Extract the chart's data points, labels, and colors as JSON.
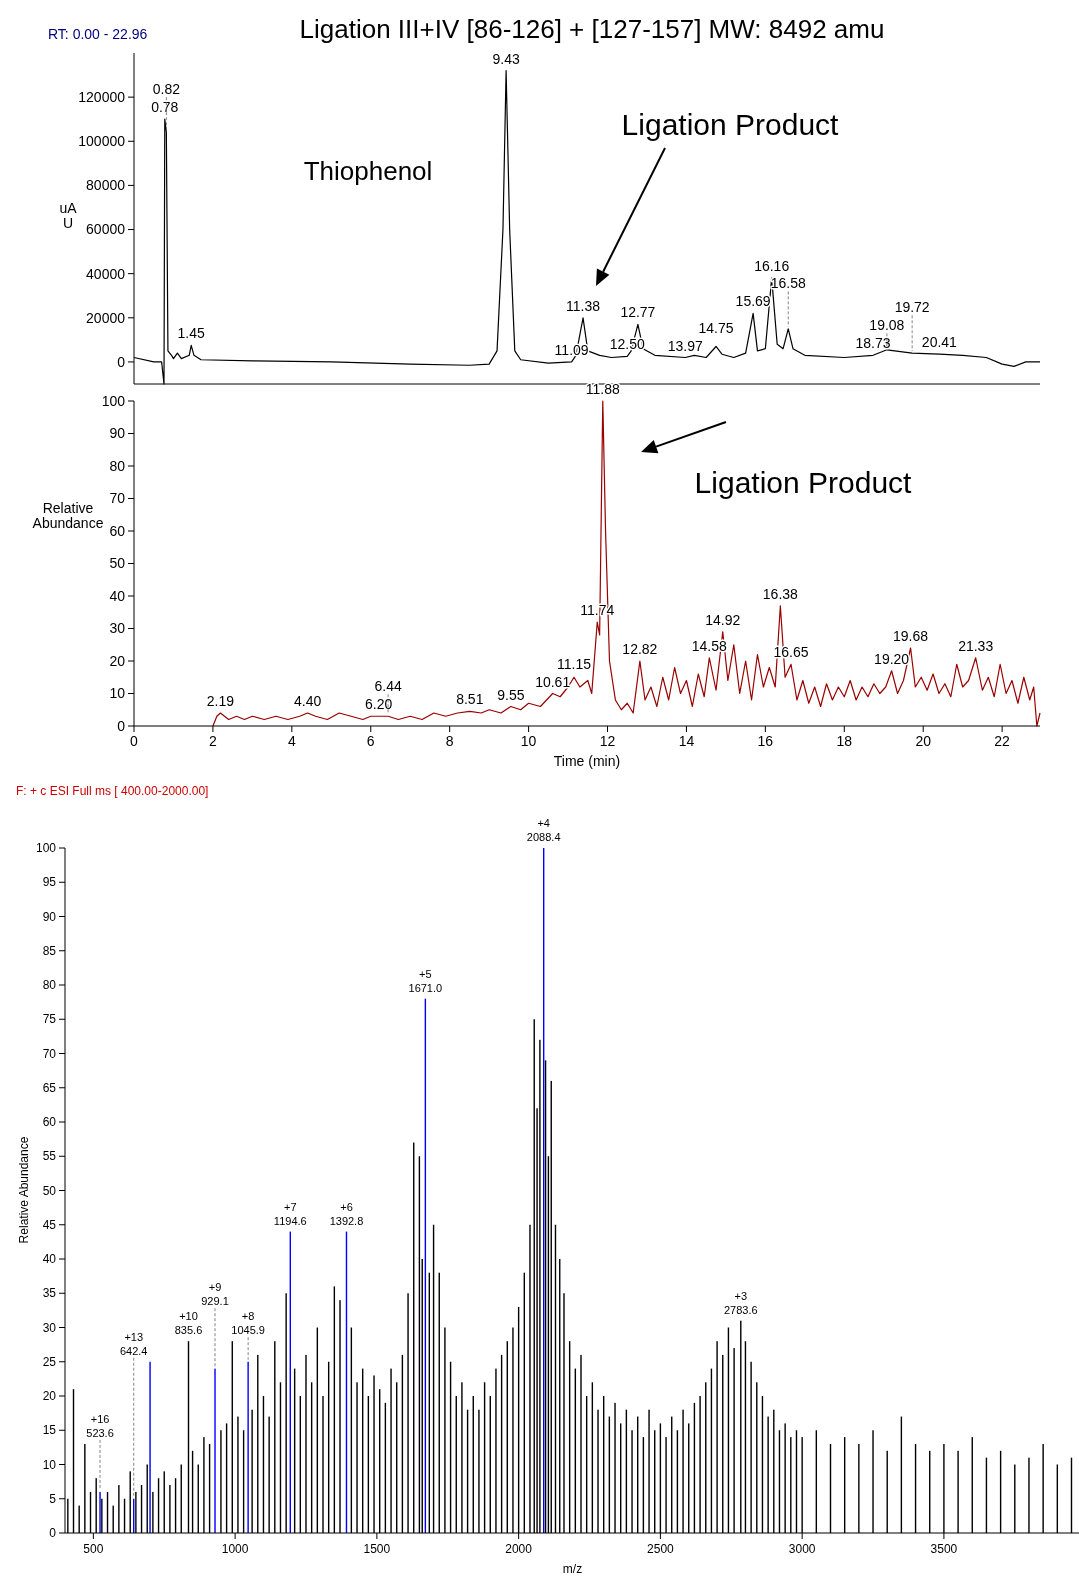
{
  "chart_data": [
    {
      "type": "line",
      "title": "Ligation III+IV [86-126] + [127-157] MW: 8492 amu",
      "ylabel": "uA U",
      "xlim": [
        0,
        22.96
      ],
      "ylim": [
        -10000,
        140000
      ],
      "yticks": [
        0,
        20000,
        40000,
        60000,
        80000,
        100000,
        120000
      ],
      "tick_labels": "y",
      "x": [
        0,
        0.5,
        0.7,
        0.76,
        0.78,
        0.82,
        0.86,
        0.95,
        1.0,
        1.1,
        1.2,
        1.4,
        1.45,
        1.52,
        1.7,
        3,
        5,
        7,
        8.5,
        9.0,
        9.2,
        9.35,
        9.43,
        9.52,
        9.65,
        9.8,
        10.5,
        11.09,
        11.2,
        11.38,
        11.5,
        11.8,
        12.1,
        12.5,
        12.6,
        12.77,
        12.9,
        13.2,
        13.97,
        14.2,
        14.5,
        14.75,
        14.9,
        15.2,
        15.5,
        15.69,
        15.8,
        16.0,
        16.16,
        16.3,
        16.45,
        16.58,
        16.7,
        17,
        18,
        18.73,
        19.08,
        19.72,
        20.41,
        21,
        21.6,
        22.0,
        22.3,
        22.6,
        22.96
      ],
      "series": [
        {
          "color": "#000000",
          "values": [
            2000,
            0,
            0,
            -10000,
            110000,
            104000,
            5000,
            3000,
            1500,
            4000,
            1500,
            3000,
            7500,
            3000,
            1000,
            500,
            0,
            -1000,
            -1500,
            -1000,
            5000,
            60000,
            132000,
            60000,
            5000,
            1000,
            -500,
            0,
            3000,
            20000,
            5000,
            3000,
            2000,
            2500,
            5000,
            17000,
            6000,
            3000,
            2000,
            3000,
            2000,
            7000,
            3500,
            2000,
            4000,
            22000,
            5000,
            6000,
            38000,
            8000,
            6000,
            15000,
            6000,
            3000,
            2000,
            3000,
            5500,
            4000,
            3500,
            3000,
            2000,
            -1000,
            -2000,
            0,
            0
          ]
        }
      ],
      "annotations": [
        "RT: 0.00 - 22.96",
        "Thiophenol",
        "Ligation Product",
        {
          "text": "0.78",
          "x": 0.78,
          "y": 110000
        },
        {
          "text": "0.82",
          "x": 0.82,
          "y": 104000
        },
        {
          "text": "1.45",
          "x": 1.45,
          "y": 7500
        },
        {
          "text": "9.43",
          "x": 9.43,
          "y": 132000
        },
        {
          "text": "11.09",
          "x": 11.09,
          "y": 0
        },
        {
          "text": "11.38",
          "x": 11.38,
          "y": 20000
        },
        {
          "text": "12.50",
          "x": 12.5,
          "y": 2500
        },
        {
          "text": "12.77",
          "x": 12.77,
          "y": 17000
        },
        {
          "text": "13.97",
          "x": 13.97,
          "y": 2000
        },
        {
          "text": "14.75",
          "x": 14.75,
          "y": 7000
        },
        {
          "text": "15.69",
          "x": 15.69,
          "y": 22000
        },
        {
          "text": "16.16",
          "x": 16.16,
          "y": 38000
        },
        {
          "text": "16.58",
          "x": 16.58,
          "y": 15000
        },
        {
          "text": "18.73",
          "x": 18.73,
          "y": 3000
        },
        {
          "text": "19.08",
          "x": 19.08,
          "y": 5500
        },
        {
          "text": "19.72",
          "x": 19.72,
          "y": 4000
        },
        {
          "text": "20.41",
          "x": 20.41,
          "y": 3500
        }
      ]
    },
    {
      "type": "line",
      "xlabel": "Time (min)",
      "ylabel": "Relative Abundance",
      "xlim": [
        0,
        22.96
      ],
      "ylim": [
        0,
        100
      ],
      "xticks": [
        0,
        2,
        4,
        6,
        8,
        10,
        12,
        14,
        16,
        18,
        20,
        22
      ],
      "yticks": [
        0,
        10,
        20,
        30,
        40,
        50,
        60,
        70,
        80,
        90,
        100
      ],
      "x": [
        2.0,
        2.1,
        2.19,
        2.4,
        2.6,
        2.8,
        3.0,
        3.3,
        3.6,
        3.9,
        4.2,
        4.4,
        4.6,
        4.9,
        5.2,
        5.5,
        5.8,
        6.0,
        6.2,
        6.44,
        6.7,
        7.0,
        7.3,
        7.6,
        7.9,
        8.2,
        8.51,
        8.8,
        9.0,
        9.3,
        9.55,
        9.8,
        10.0,
        10.3,
        10.61,
        10.8,
        11.0,
        11.15,
        11.3,
        11.5,
        11.6,
        11.74,
        11.8,
        11.88,
        11.95,
        12.05,
        12.2,
        12.35,
        12.5,
        12.65,
        12.82,
        12.95,
        13.1,
        13.25,
        13.4,
        13.55,
        13.7,
        13.85,
        14.0,
        14.15,
        14.3,
        14.45,
        14.58,
        14.75,
        14.92,
        15.05,
        15.2,
        15.35,
        15.5,
        15.65,
        15.8,
        15.95,
        16.1,
        16.25,
        16.38,
        16.5,
        16.65,
        16.8,
        16.95,
        17.1,
        17.25,
        17.4,
        17.55,
        17.7,
        17.85,
        18.0,
        18.15,
        18.3,
        18.45,
        18.6,
        18.75,
        18.9,
        19.05,
        19.2,
        19.35,
        19.5,
        19.68,
        19.8,
        19.95,
        20.1,
        20.25,
        20.4,
        20.55,
        20.7,
        20.85,
        21.0,
        21.15,
        21.33,
        21.5,
        21.65,
        21.8,
        21.95,
        22.1,
        22.25,
        22.4,
        22.55,
        22.7,
        22.8,
        22.88,
        22.96
      ],
      "series": [
        {
          "color": "#990000",
          "values": [
            0,
            3,
            4,
            2,
            3,
            2,
            3,
            2,
            3,
            2,
            3,
            4,
            3,
            2,
            4,
            3,
            2,
            3,
            3,
            3,
            2,
            3,
            2,
            4,
            3,
            4,
            4.5,
            4,
            5,
            4,
            6,
            5,
            7,
            6,
            10,
            9,
            12,
            15,
            12,
            14,
            10,
            32,
            28,
            100,
            60,
            20,
            8,
            5,
            7,
            4,
            20,
            8,
            12,
            6,
            15,
            8,
            18,
            10,
            14,
            6,
            16,
            9,
            21,
            11,
            29,
            14,
            25,
            10,
            20,
            8,
            22,
            12,
            18,
            12,
            37,
            15,
            19,
            8,
            14,
            7,
            12,
            6,
            13,
            8,
            12,
            9,
            14,
            8,
            12,
            9,
            13,
            10,
            12,
            17,
            10,
            14,
            24,
            12,
            15,
            11,
            16,
            10,
            13,
            9,
            19,
            12,
            14,
            21,
            11,
            15,
            9,
            19,
            10,
            14,
            7,
            15,
            8,
            12,
            0,
            4
          ]
        }
      ],
      "annotations": [
        "Ligation Product",
        {
          "text": "2.19",
          "x": 2.19,
          "y": 4
        },
        {
          "text": "4.40",
          "x": 4.4,
          "y": 4
        },
        {
          "text": "6.20",
          "x": 6.2,
          "y": 3
        },
        {
          "text": "6.44",
          "x": 6.44,
          "y": 3
        },
        {
          "text": "8.51",
          "x": 8.51,
          "y": 4.5
        },
        {
          "text": "9.55",
          "x": 9.55,
          "y": 6
        },
        {
          "text": "10.61",
          "x": 10.61,
          "y": 10
        },
        {
          "text": "11.15",
          "x": 11.15,
          "y": 15
        },
        {
          "text": "11.74",
          "x": 11.74,
          "y": 32
        },
        {
          "text": "11.88",
          "x": 11.88,
          "y": 100
        },
        {
          "text": "12.82",
          "x": 12.82,
          "y": 20
        },
        {
          "text": "14.58",
          "x": 14.58,
          "y": 21
        },
        {
          "text": "14.92",
          "x": 14.92,
          "y": 29
        },
        {
          "text": "16.38",
          "x": 16.38,
          "y": 37
        },
        {
          "text": "16.65",
          "x": 16.65,
          "y": 19
        },
        {
          "text": "19.20",
          "x": 19.2,
          "y": 17
        },
        {
          "text": "19.68",
          "x": 19.68,
          "y": 24
        },
        {
          "text": "21.33",
          "x": 21.33,
          "y": 21
        }
      ]
    },
    {
      "type": "bar",
      "xlabel": "m/z",
      "ylabel": "Relative Abundance",
      "xlim": [
        400,
        3980
      ],
      "ylim": [
        0,
        100
      ],
      "xticks": [
        500,
        1000,
        1500,
        2000,
        2500,
        3000,
        3500
      ],
      "yticks": [
        0,
        5,
        10,
        15,
        20,
        25,
        30,
        35,
        40,
        45,
        50,
        55,
        60,
        65,
        70,
        75,
        80,
        85,
        90,
        95,
        100
      ],
      "x": [
        410,
        430,
        450,
        470,
        490,
        510,
        530,
        550,
        570,
        590,
        610,
        630,
        650,
        670,
        690,
        710,
        730,
        750,
        770,
        790,
        810,
        835.6,
        850,
        870,
        890,
        910,
        950,
        970,
        990,
        1010,
        1030,
        1060,
        1080,
        1100,
        1120,
        1140,
        1160,
        1180,
        1210,
        1230,
        1250,
        1270,
        1290,
        1310,
        1330,
        1350,
        1370,
        1410,
        1430,
        1450,
        1470,
        1490,
        1510,
        1530,
        1550,
        1570,
        1590,
        1610,
        1630,
        1650,
        1660,
        1685,
        1700,
        1720,
        1740,
        1760,
        1780,
        1800,
        1820,
        1840,
        1860,
        1880,
        1900,
        1920,
        1940,
        1960,
        1980,
        2000,
        2020,
        2040,
        2055,
        2065,
        2075,
        2095,
        2105,
        2115,
        2130,
        2145,
        2160,
        2180,
        2200,
        2220,
        2240,
        2260,
        2280,
        2300,
        2320,
        2340,
        2360,
        2380,
        2400,
        2420,
        2440,
        2460,
        2480,
        2500,
        2520,
        2540,
        2560,
        2580,
        2600,
        2620,
        2640,
        2660,
        2680,
        2700,
        2720,
        2740,
        2760,
        2783.6,
        2800,
        2820,
        2840,
        2860,
        2880,
        2900,
        2920,
        2940,
        2960,
        2980,
        3000,
        3050,
        3100,
        3150,
        3200,
        3250,
        3300,
        3350,
        3400,
        3450,
        3500,
        3550,
        3600,
        3650,
        3700,
        3750,
        3800,
        3850,
        3900,
        3950
      ],
      "series": [
        {
          "color": "#000000",
          "values": [
            5,
            21,
            4,
            13,
            6,
            8,
            5,
            6,
            4,
            7,
            5,
            9,
            6,
            7,
            10,
            6,
            8,
            9,
            7,
            8,
            10,
            28,
            12,
            10,
            14,
            13,
            15,
            16,
            28,
            17,
            15,
            18,
            26,
            20,
            17,
            28,
            22,
            35,
            24,
            20,
            26,
            22,
            30,
            20,
            25,
            36,
            34,
            30,
            22,
            24,
            20,
            23,
            21,
            19,
            24,
            22,
            26,
            35,
            57,
            55,
            40,
            38,
            45,
            38,
            30,
            25,
            20,
            22,
            18,
            20,
            18,
            22,
            20,
            24,
            26,
            28,
            30,
            33,
            38,
            45,
            75,
            62,
            72,
            69,
            55,
            66,
            45,
            40,
            35,
            28,
            24,
            26,
            20,
            22,
            18,
            20,
            17,
            19,
            16,
            18,
            15,
            17,
            14,
            18,
            15,
            16,
            14,
            17,
            15,
            18,
            16,
            19,
            20,
            22,
            24,
            28,
            26,
            30,
            27,
            31,
            28,
            25,
            22,
            20,
            17,
            18,
            15,
            16,
            14,
            15,
            14,
            15,
            13,
            14,
            13,
            15,
            12,
            17,
            13,
            12,
            13,
            12,
            14,
            11,
            12,
            10,
            11,
            13,
            10,
            11
          ]
        },
        {
          "color": "#0000ff",
          "x": [
            523.6,
            642.4,
            700,
            929.1,
            1045.9,
            1194.6,
            1392.8,
            1671.0,
            2088.4
          ],
          "values": [
            6,
            5,
            25,
            24,
            25,
            44,
            44,
            78,
            100
          ]
        }
      ],
      "annotations": [
        "F: + c ESI Full ms [ 400.00-2000.00]",
        {
          "text": "+16 523.6",
          "x": 523.6,
          "y": 6
        },
        {
          "text": "+13 642.4",
          "x": 642.4,
          "y": 5
        },
        {
          "text": "+10 835.6",
          "x": 835.6,
          "y": 28
        },
        {
          "text": "+9 929.1",
          "x": 929.1,
          "y": 24
        },
        {
          "text": "+8 1045.9",
          "x": 1045.9,
          "y": 25
        },
        {
          "text": "+7 1194.6",
          "x": 1194.6,
          "y": 44
        },
        {
          "text": "+6 1392.8",
          "x": 1392.8,
          "y": 44
        },
        {
          "text": "+5 1671.0",
          "x": 1671.0,
          "y": 78
        },
        {
          "text": "+4 2088.4",
          "x": 2088.4,
          "y": 100
        },
        {
          "text": "+3 2783.6",
          "x": 2783.6,
          "y": 31
        }
      ]
    }
  ]
}
